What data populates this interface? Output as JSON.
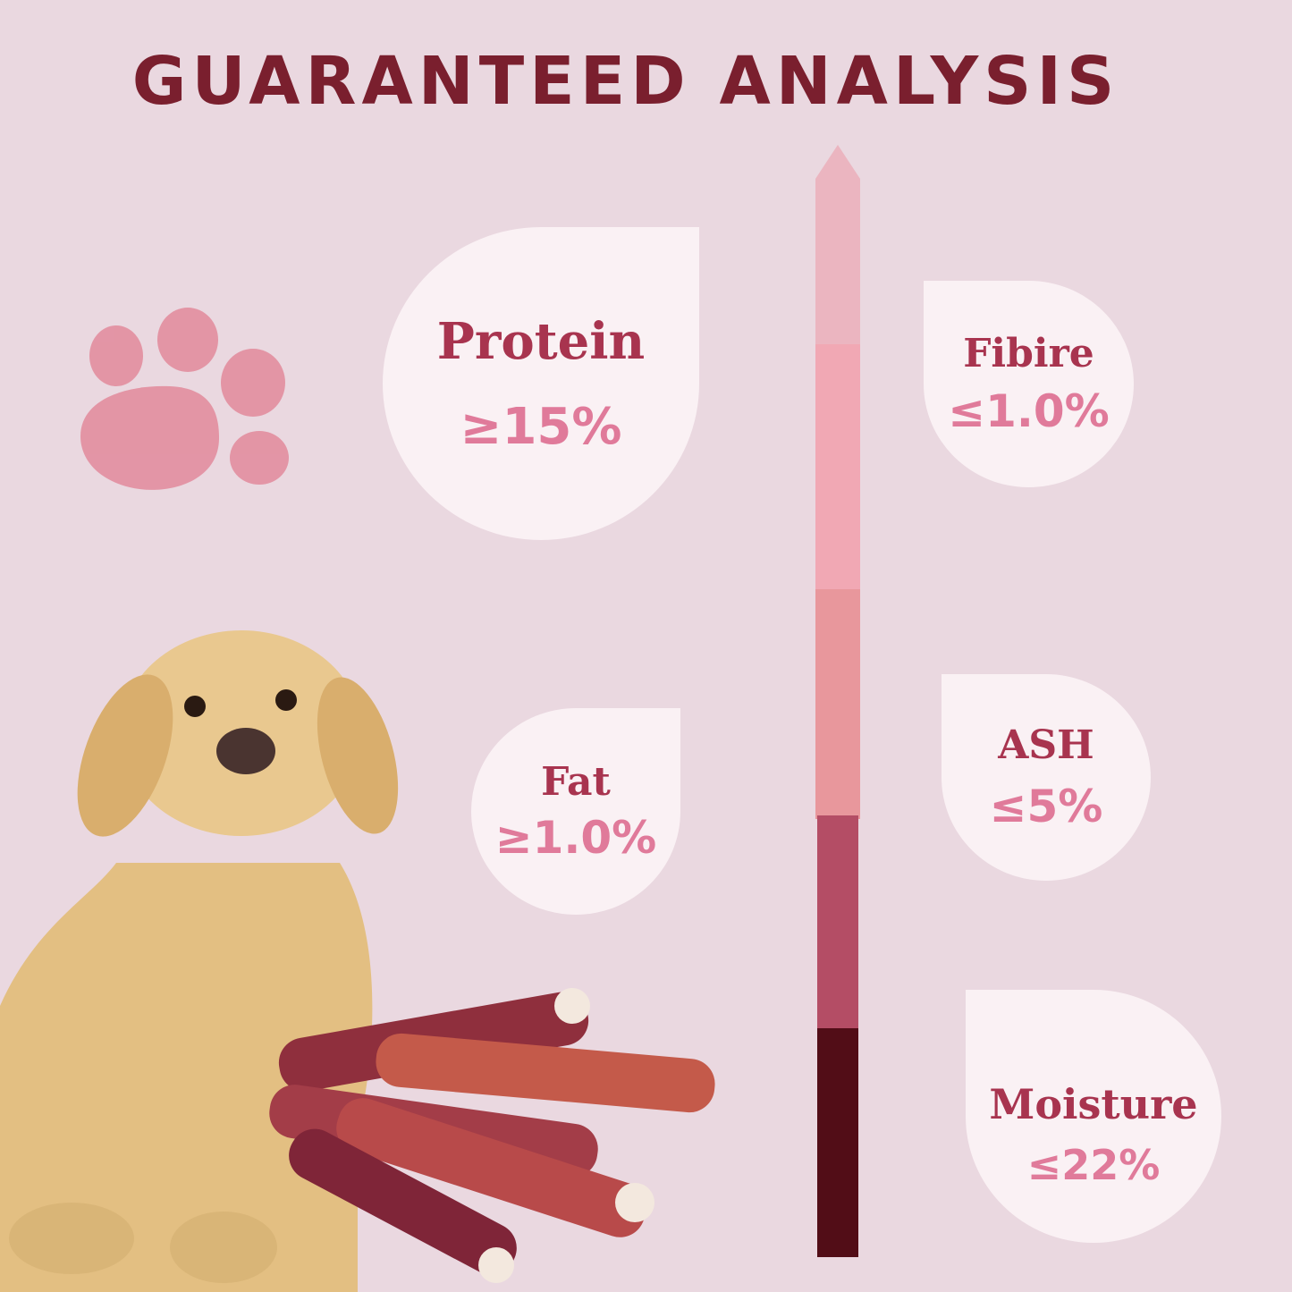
{
  "title": "GUARANTEED ANALYSIS",
  "nutrients": [
    {
      "label": "Protein",
      "value": "≥15%"
    },
    {
      "label": "Fibire",
      "value": "≤1.0%"
    },
    {
      "label": "Fat",
      "value": "≥1.0%"
    },
    {
      "label": "ASH",
      "value": "≤5%"
    },
    {
      "label": "Moisture",
      "value": "≤22%"
    }
  ],
  "colors": {
    "title": "#7a1f2e",
    "label": "#a8344f",
    "value": "#e07a9a",
    "background": "#ead8e0",
    "bar": [
      "#ebb5c0",
      "#f1a8b4",
      "#e8979c",
      "#b44d65",
      "#520d17"
    ]
  }
}
